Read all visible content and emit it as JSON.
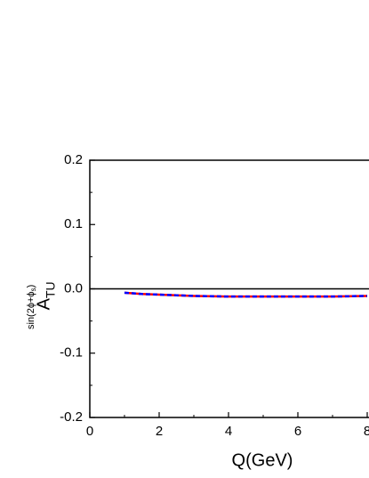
{
  "chart_data": {
    "type": "line",
    "xlabel": "Q(GeV)",
    "ylabel": {
      "base": "A",
      "sub": "TU",
      "sup": "sin(2ϕ+ϕ",
      "sup_sub": "s",
      "sup_end": ")"
    },
    "x": [
      1,
      1.5,
      2,
      3,
      4,
      5,
      6,
      7,
      8
    ],
    "series": [
      {
        "color": "#ff0000",
        "style": "solid",
        "values": [
          -0.006,
          -0.008,
          -0.009,
          -0.011,
          -0.012,
          -0.012,
          -0.012,
          -0.012,
          -0.011
        ]
      },
      {
        "color": "#0000ff",
        "style": "dashed",
        "values": [
          -0.006,
          -0.008,
          -0.009,
          -0.011,
          -0.012,
          -0.012,
          -0.012,
          -0.012,
          -0.011
        ]
      }
    ],
    "xlim": [
      0,
      10
    ],
    "xticks": [
      0,
      2,
      4,
      6,
      8
    ],
    "ylim": [
      -0.2,
      0.2
    ],
    "yticks": [
      {
        "value": -0.2,
        "label": "-0.2"
      },
      {
        "value": -0.1,
        "label": "-0.1"
      },
      {
        "value": 0,
        "label": "0.0"
      },
      {
        "value": 0.1,
        "label": "0.1"
      },
      {
        "value": 0.2,
        "label": "0.2"
      }
    ]
  }
}
